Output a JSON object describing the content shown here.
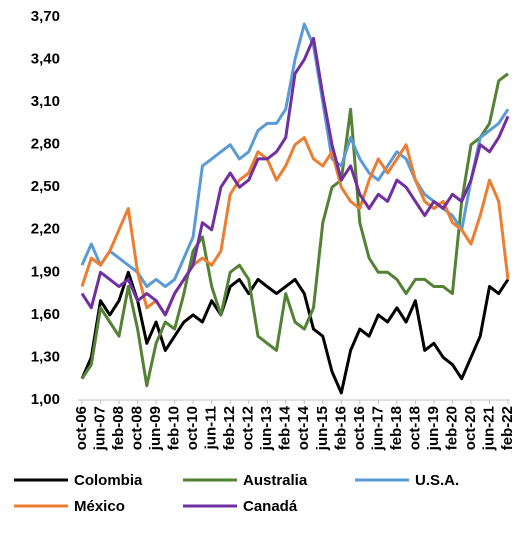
{
  "chart_data": {
    "type": "line",
    "categories": [
      "oct-06",
      null,
      "jun-07",
      null,
      "feb-08",
      null,
      "oct-08",
      null,
      "jun-09",
      null,
      "feb-10",
      null,
      "oct-10",
      null,
      "jun-11",
      null,
      "feb-12",
      null,
      "oct-12",
      null,
      "jun-13",
      null,
      "feb-14",
      null,
      "oct-14",
      null,
      "jun-15",
      null,
      "feb-16",
      null,
      "oct-16",
      null,
      "jun-17",
      null,
      "feb-18",
      null,
      "oct-18",
      null,
      "jun-19",
      null,
      "feb-20",
      null,
      "oct-20",
      null,
      "jun-21",
      null,
      "feb-22"
    ],
    "ylim": [
      1.0,
      3.7
    ],
    "yticks": [
      {
        "value": 1.0,
        "label": "1,00"
      },
      {
        "value": 1.3,
        "label": "1,30"
      },
      {
        "value": 1.6,
        "label": "1,60"
      },
      {
        "value": 1.9,
        "label": "1,90"
      },
      {
        "value": 2.2,
        "label": "2,20"
      },
      {
        "value": 2.5,
        "label": "2,50"
      },
      {
        "value": 2.8,
        "label": "2,80"
      },
      {
        "value": 3.1,
        "label": "3,10"
      },
      {
        "value": 3.4,
        "label": "3,40"
      },
      {
        "value": 3.7,
        "label": "3,70"
      }
    ],
    "grid": false,
    "series": [
      {
        "name": "Colombia",
        "color": "#000000",
        "values": [
          1.15,
          1.3,
          1.7,
          1.6,
          1.7,
          1.9,
          1.7,
          1.4,
          1.55,
          1.35,
          1.45,
          1.55,
          1.6,
          1.55,
          1.7,
          1.6,
          1.8,
          1.85,
          1.75,
          1.85,
          1.8,
          1.75,
          1.8,
          1.85,
          1.75,
          1.5,
          1.45,
          1.2,
          1.05,
          1.35,
          1.5,
          1.45,
          1.6,
          1.55,
          1.65,
          1.55,
          1.7,
          1.35,
          1.4,
          1.3,
          1.25,
          1.15,
          1.3,
          1.45,
          1.8,
          1.75,
          1.85
        ]
      },
      {
        "name": "Australia",
        "color": "#548235",
        "values": [
          1.15,
          1.25,
          1.65,
          1.55,
          1.45,
          1.8,
          1.5,
          1.1,
          1.4,
          1.55,
          1.5,
          1.75,
          2.05,
          2.15,
          1.8,
          1.6,
          1.9,
          1.95,
          1.85,
          1.45,
          1.4,
          1.35,
          1.75,
          1.55,
          1.5,
          1.65,
          2.25,
          2.5,
          2.55,
          3.05,
          2.25,
          2.0,
          1.9,
          1.9,
          1.85,
          1.75,
          1.85,
          1.85,
          1.8,
          1.8,
          1.75,
          2.4,
          2.8,
          2.85,
          2.95,
          3.25,
          3.3
        ]
      },
      {
        "name": "U.S.A.",
        "color": "#5b9bd5",
        "values": [
          1.95,
          2.1,
          1.95,
          2.05,
          2.0,
          1.95,
          1.9,
          1.8,
          1.85,
          1.8,
          1.85,
          2.0,
          2.15,
          2.65,
          2.7,
          2.75,
          2.8,
          2.7,
          2.75,
          2.9,
          2.95,
          2.95,
          3.05,
          3.4,
          3.65,
          3.5,
          3.1,
          2.7,
          2.65,
          2.85,
          2.7,
          2.6,
          2.55,
          2.65,
          2.75,
          2.7,
          2.55,
          2.45,
          2.4,
          2.35,
          2.3,
          2.2,
          2.55,
          2.85,
          2.9,
          2.95,
          3.05
        ]
      },
      {
        "name": "México",
        "color": "#ed7d31",
        "values": [
          1.8,
          2.0,
          1.95,
          2.05,
          2.2,
          2.35,
          1.9,
          1.65,
          1.7,
          1.6,
          1.75,
          1.85,
          1.95,
          2.0,
          1.95,
          2.05,
          2.45,
          2.55,
          2.6,
          2.75,
          2.7,
          2.55,
          2.65,
          2.8,
          2.85,
          2.7,
          2.65,
          2.75,
          2.5,
          2.4,
          2.35,
          2.55,
          2.7,
          2.6,
          2.7,
          2.8,
          2.55,
          2.4,
          2.35,
          2.4,
          2.25,
          2.2,
          2.1,
          2.3,
          2.55,
          2.4,
          1.85
        ]
      },
      {
        "name": "Canadá",
        "color": "#7030a0",
        "values": [
          1.75,
          1.65,
          1.9,
          1.85,
          1.8,
          1.85,
          1.7,
          1.75,
          1.7,
          1.6,
          1.75,
          1.85,
          1.95,
          2.25,
          2.2,
          2.5,
          2.6,
          2.5,
          2.55,
          2.7,
          2.7,
          2.75,
          2.85,
          3.3,
          3.4,
          3.55,
          3.15,
          2.8,
          2.55,
          2.65,
          2.45,
          2.35,
          2.45,
          2.4,
          2.55,
          2.5,
          2.4,
          2.3,
          2.4,
          2.35,
          2.45,
          2.4,
          2.55,
          2.8,
          2.75,
          2.85,
          3.0
        ]
      }
    ]
  }
}
